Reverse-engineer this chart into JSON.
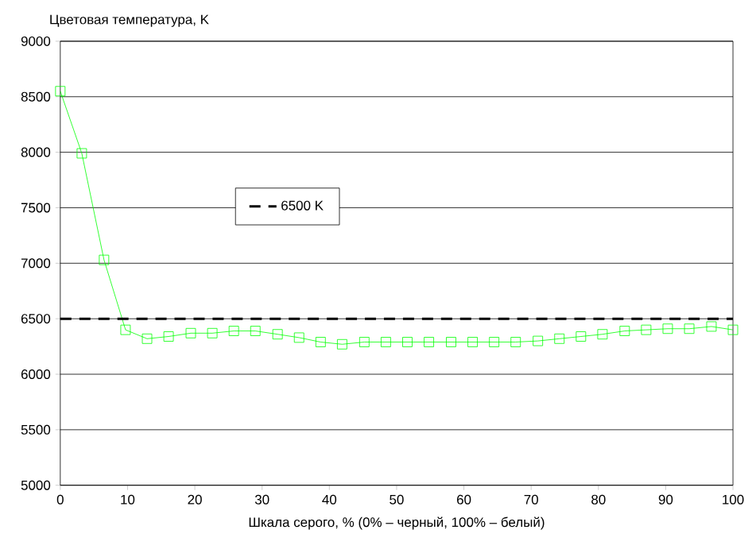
{
  "chart_data": {
    "type": "line",
    "ylabel": "Цветовая температура, K",
    "xlabel": "Шкала серого, % (0% – черный, 100% – белый)",
    "x": [
      0,
      3.2,
      6.5,
      9.7,
      12.9,
      16.1,
      19.4,
      22.6,
      25.8,
      29,
      32.3,
      35.5,
      38.7,
      41.9,
      45.2,
      48.4,
      51.6,
      54.8,
      58.1,
      61.3,
      64.5,
      67.7,
      71,
      74.2,
      77.4,
      80.6,
      83.9,
      87.1,
      90.3,
      93.5,
      96.8,
      100
    ],
    "series": [
      {
        "color": "#00ff00",
        "values": [
          8550,
          7990,
          7030,
          6400,
          6320,
          6340,
          6370,
          6370,
          6390,
          6390,
          6360,
          6330,
          6290,
          6270,
          6290,
          6290,
          6290,
          6290,
          6290,
          6290,
          6290,
          6290,
          6300,
          6320,
          6340,
          6360,
          6390,
          6400,
          6410,
          6410,
          6430,
          6400
        ]
      }
    ],
    "ref_lines": [
      {
        "axis": "y",
        "value": 6500,
        "label": "6500 K",
        "color": "#000000",
        "line_style": "dashed"
      }
    ],
    "xlim": [
      0,
      100
    ],
    "ylim": [
      5000,
      9000
    ],
    "xticks": [
      0,
      10,
      20,
      30,
      40,
      50,
      60,
      70,
      80,
      90,
      100
    ],
    "yticks": [
      5000,
      5500,
      6000,
      6500,
      7000,
      7500,
      8000,
      8500,
      9000
    ],
    "grid": "y",
    "legend": "left",
    "marker": "square",
    "line_style": "solid"
  }
}
